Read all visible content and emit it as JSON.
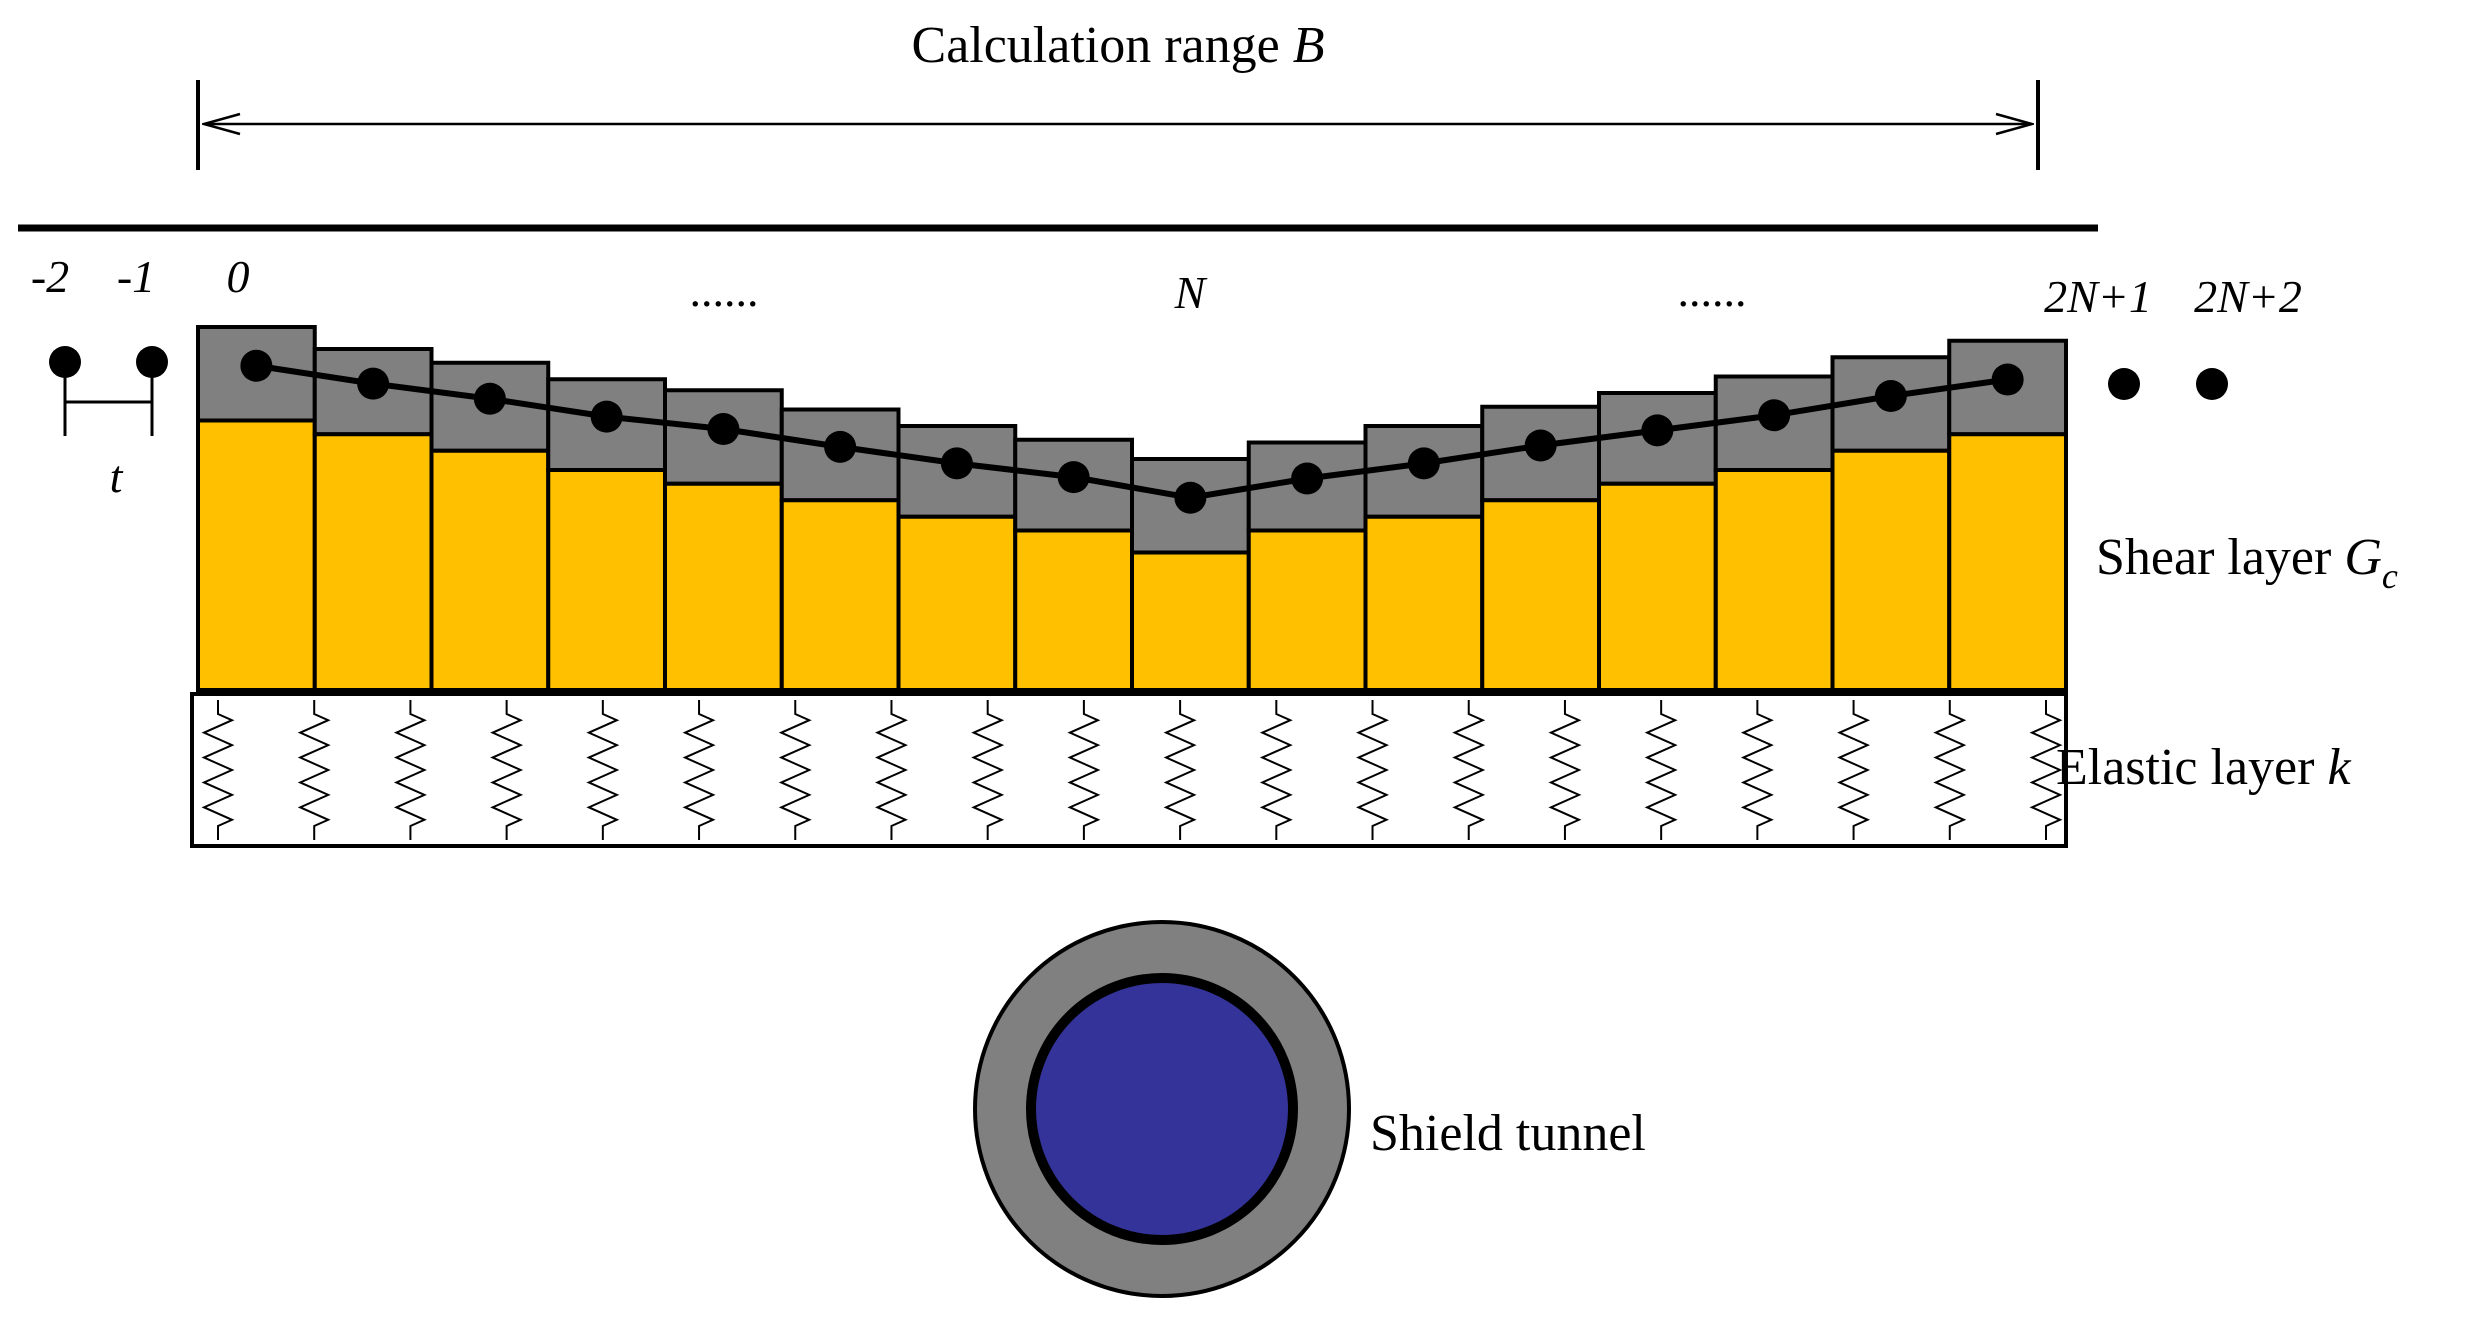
{
  "colors": {
    "shear_fill": "#FFC000",
    "settlement_fill": "#808080",
    "tunnel_lining": "#808080",
    "tunnel_core": "#333399",
    "line": "#000000"
  },
  "labels": {
    "calc_range": {
      "text": "Calculation range ",
      "var": "B"
    },
    "shear_layer": {
      "text": "Shear layer ",
      "var": "G",
      "sub": "c"
    },
    "elastic_layer": {
      "text": "Elastic layer ",
      "var": "k"
    },
    "shield_tunnel": "Shield tunnel",
    "spacing": "t"
  },
  "node_labels": {
    "n_minus2": "-2",
    "n_minus1": "-1",
    "n_zero": "0",
    "n_mid": "N",
    "n_2N1": "2N+1",
    "n_2N2": "2N+2",
    "ellipsis_left": "......",
    "ellipsis_right": "......"
  },
  "columns": {
    "count": 16,
    "shear_heights": [
      0.98,
      0.93,
      0.87,
      0.8,
      0.75,
      0.69,
      0.63,
      0.58,
      0.5,
      0.58,
      0.63,
      0.69,
      0.75,
      0.8,
      0.87,
      0.93
    ],
    "settlement_heights": [
      0.34,
      0.31,
      0.32,
      0.33,
      0.34,
      0.33,
      0.33,
      0.33,
      0.34,
      0.32,
      0.33,
      0.34,
      0.33,
      0.34,
      0.34,
      0.34
    ]
  },
  "springs": {
    "count": 20
  }
}
